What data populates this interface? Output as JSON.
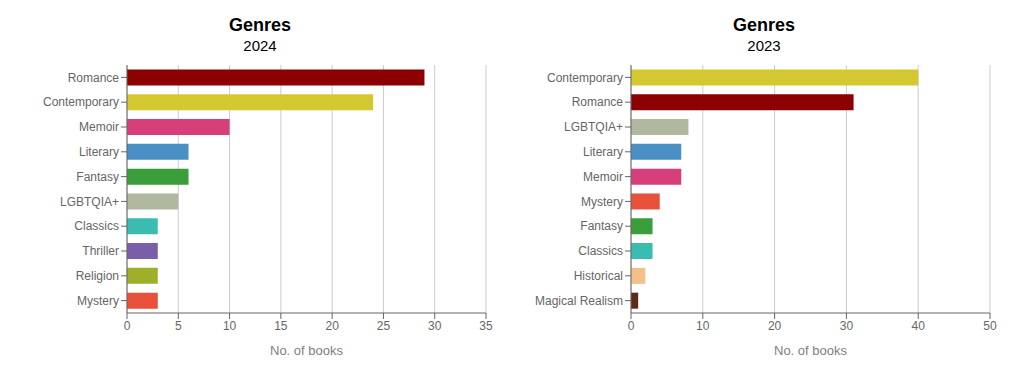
{
  "chart_data": [
    {
      "type": "bar",
      "orientation": "horizontal",
      "title": "Genres",
      "subtitle": "2024",
      "categories": [
        "Romance",
        "Contemporary",
        "Memoir",
        "Literary",
        "Fantasy",
        "LGBTQIA+",
        "Classics",
        "Thriller",
        "Religion",
        "Mystery"
      ],
      "values": [
        29,
        24,
        10,
        6,
        6,
        5,
        3,
        3,
        3,
        3
      ],
      "colors": [
        "#8B0000",
        "#D4C830",
        "#D63F7A",
        "#4A90C4",
        "#3A9E3A",
        "#B0B8A0",
        "#3ABDB0",
        "#7B5EA8",
        "#9FAF2A",
        "#E8503A"
      ],
      "xlabel": "No. of books",
      "xlim": [
        0,
        35
      ],
      "xticks": [
        0,
        5,
        10,
        15,
        20,
        25,
        30,
        35
      ],
      "grid": "x"
    },
    {
      "type": "bar",
      "orientation": "horizontal",
      "title": "Genres",
      "subtitle": "2023",
      "categories": [
        "Contemporary",
        "Romance",
        "LGBTQIA+",
        "Literary",
        "Memoir",
        "Mystery",
        "Fantasy",
        "Classics",
        "Historical",
        "Magical Realism"
      ],
      "values": [
        40,
        31,
        8,
        7,
        7,
        4,
        3,
        3,
        2,
        1
      ],
      "colors": [
        "#D4C830",
        "#8B0000",
        "#B0B8A0",
        "#4A90C4",
        "#D63F7A",
        "#E8503A",
        "#3A9E3A",
        "#3ABDB0",
        "#F4C08A",
        "#5C2A1A"
      ],
      "xlabel": "No. of books",
      "xlim": [
        0,
        50
      ],
      "xticks": [
        0,
        10,
        20,
        30,
        40,
        50
      ],
      "grid": "x"
    }
  ]
}
